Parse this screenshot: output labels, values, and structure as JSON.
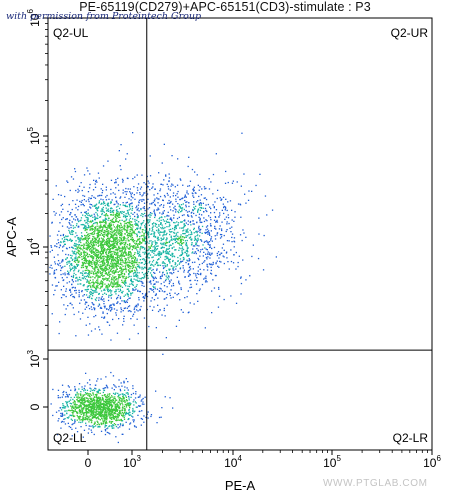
{
  "chart_data": {
    "type": "scatter",
    "title": "PE-65119(CD279)+APC-65151(CD3)-stimulate : P3",
    "xlabel": "PE-A",
    "ylabel": "APC-A",
    "x_scale": "biexponential (log with linear region around 0)",
    "y_scale": "biexponential (log with linear region around 0)",
    "xlim": [
      -400,
      1000000
    ],
    "ylim": [
      -400,
      1000000
    ],
    "x_ticks": [
      {
        "value": 0,
        "base": "0",
        "exp": ""
      },
      {
        "value": 1000,
        "base": "10",
        "exp": "3"
      },
      {
        "value": 10000,
        "base": "10",
        "exp": "4"
      },
      {
        "value": 100000,
        "base": "10",
        "exp": "5"
      },
      {
        "value": 1000000,
        "base": "10",
        "exp": "6"
      }
    ],
    "y_ticks": [
      {
        "value": 0,
        "base": "0",
        "exp": ""
      },
      {
        "value": 1000,
        "base": "10",
        "exp": "3"
      },
      {
        "value": 10000,
        "base": "10",
        "exp": "4"
      },
      {
        "value": 100000,
        "base": "10",
        "exp": "5"
      },
      {
        "value": 1000000,
        "base": "10",
        "exp": "6"
      }
    ],
    "gates": {
      "x_threshold": 1400,
      "y_threshold": 1200,
      "quadrants": [
        "Q2-UL",
        "Q2-UR",
        "Q2-LL",
        "Q2-LR"
      ]
    },
    "populations": [
      {
        "name": "",
        "center_x": 400,
        "center_y": 9000,
        "events": 2600
      },
      {
        "name": "",
        "center_x": 2500,
        "center_y": 12000,
        "events": 1500
      },
      {
        "name": "",
        "center_x": 250,
        "center_y": 0,
        "events": 1300
      }
    ],
    "colors": {
      "density_low": "#1f5fd6",
      "density_mid": "#18b4a4",
      "density_high": "#3cc83c"
    }
  },
  "watermark_top": "with permission from Proteintech Group",
  "watermark_bottom": "WWW.PTGLAB.COM"
}
